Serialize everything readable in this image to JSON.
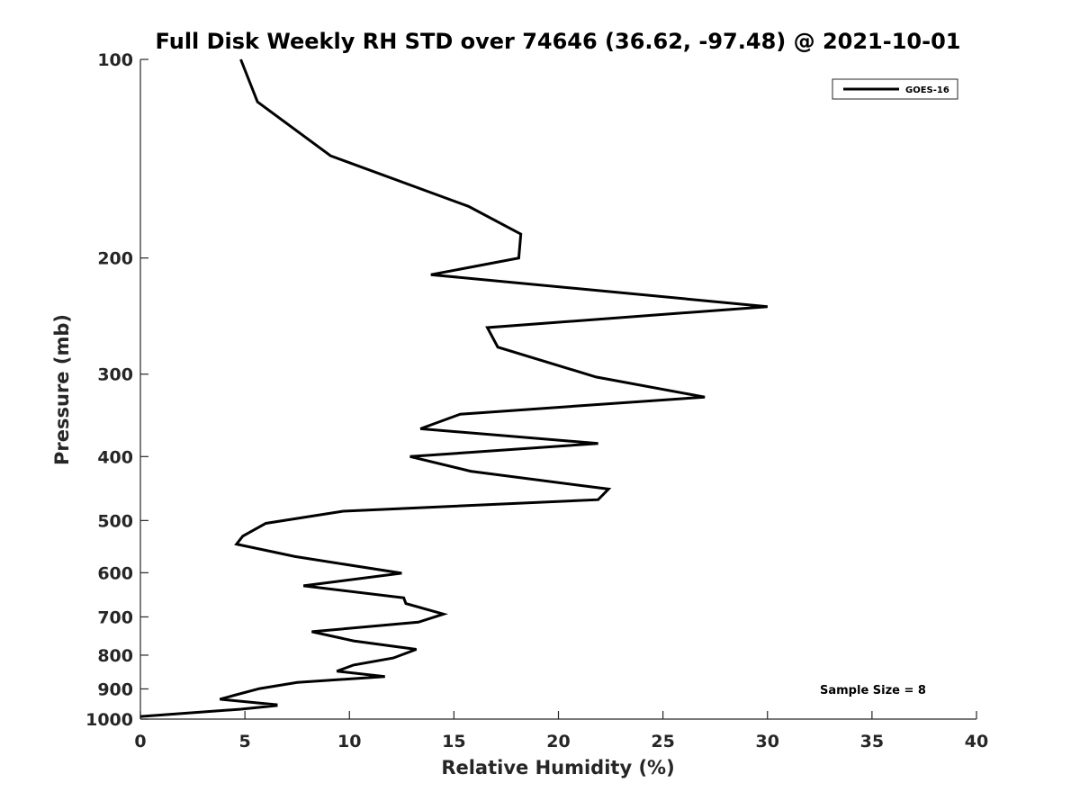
{
  "chart_data": {
    "type": "line",
    "title": "Full Disk Weekly RH STD over 74646 (36.62, -97.48) @ 2021-10-01",
    "xlabel": "Relative Humidity (%)",
    "ylabel": "Pressure (mb)",
    "xlim": [
      0,
      40
    ],
    "ylim": [
      100,
      1000
    ],
    "yscale": "log",
    "y_reversed": true,
    "grid": false,
    "x_ticks": [
      0,
      5,
      10,
      15,
      20,
      25,
      30,
      35,
      40
    ],
    "y_ticks": [
      100,
      200,
      300,
      400,
      500,
      600,
      700,
      800,
      900,
      1000
    ],
    "legend": {
      "position": "top-right",
      "entries": [
        "GOES-16"
      ]
    },
    "annotation": "Sample Size = 8",
    "series": [
      {
        "name": "GOES-16",
        "color": "#000000",
        "x": [
          4.8,
          5.6,
          9.1,
          15.7,
          18.2,
          18.1,
          13.9,
          30.0,
          16.6,
          17.1,
          21.8,
          27.0,
          15.3,
          13.4,
          21.9,
          12.9,
          15.8,
          22.4,
          21.9,
          9.7,
          6.0,
          4.9,
          4.6,
          7.4,
          12.5,
          7.8,
          12.6,
          12.7,
          14.5,
          13.3,
          8.2,
          10.2,
          13.2,
          12.1,
          10.2,
          9.4,
          11.7,
          7.5,
          5.7,
          4.5,
          3.8,
          6.5,
          6.5,
          4.8,
          0.0
        ],
        "y": [
          100,
          116,
          140,
          167,
          184,
          200,
          212,
          237,
          255,
          273,
          303,
          325,
          345,
          363,
          382,
          400,
          421,
          448,
          465,
          484,
          505,
          528,
          543,
          567,
          601,
          628,
          655,
          668,
          693,
          713,
          737,
          761,
          784,
          808,
          828,
          846,
          862,
          880,
          899,
          920,
          933,
          951,
          954,
          966,
          991
        ]
      }
    ]
  }
}
